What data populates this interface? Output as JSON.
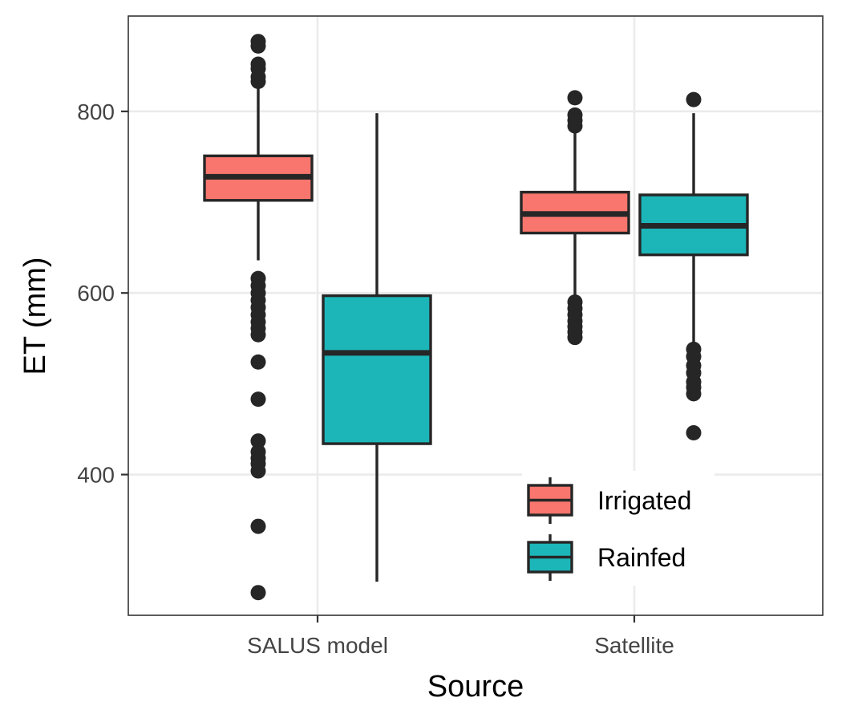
{
  "chart_data": {
    "type": "boxplot",
    "xlabel": "Source",
    "ylabel": "ET (mm)",
    "categories": [
      "SALUS model",
      "Satellite"
    ],
    "ylim": [
      245,
      905
    ],
    "yticks": [
      400,
      600,
      800
    ],
    "grid": true,
    "legend": {
      "placement": "bottom-right",
      "entries": [
        {
          "name": "Irrigated",
          "color": "#F8766D"
        },
        {
          "name": "Rainfed",
          "color": "#1CB6B9"
        }
      ]
    },
    "series": [
      {
        "name": "Irrigated",
        "color": "#F8766D",
        "boxes": [
          {
            "category": "SALUS model",
            "q1": 702,
            "median": 728,
            "q3": 751,
            "whisker_low": 636,
            "whisker_high": 826,
            "outliers": [
              877,
              872,
              852,
              847,
              838,
              833,
              616,
              608,
              600,
              592,
              584,
              576,
              568,
              561,
              554,
              524,
              483,
              437,
              425,
              418,
              412,
              404,
              343,
              270
            ]
          },
          {
            "category": "Satellite",
            "q1": 666,
            "median": 687,
            "q3": 711,
            "whisker_low": 596,
            "whisker_high": 776,
            "outliers": [
              815,
              796,
              790,
              784,
              590,
              583,
              576,
              569,
              563,
              557,
              551
            ]
          }
        ]
      },
      {
        "name": "Rainfed",
        "color": "#1CB6B9",
        "boxes": [
          {
            "category": "SALUS model",
            "q1": 434,
            "median": 534,
            "q3": 597,
            "whisker_low": 282,
            "whisker_high": 798,
            "outliers": []
          },
          {
            "category": "Satellite",
            "q1": 642,
            "median": 674,
            "q3": 708,
            "whisker_low": 545,
            "whisker_high": 798,
            "outliers": [
              813,
              538,
              530,
              520,
              512,
              502,
              496,
              489,
              446
            ]
          }
        ]
      }
    ]
  }
}
